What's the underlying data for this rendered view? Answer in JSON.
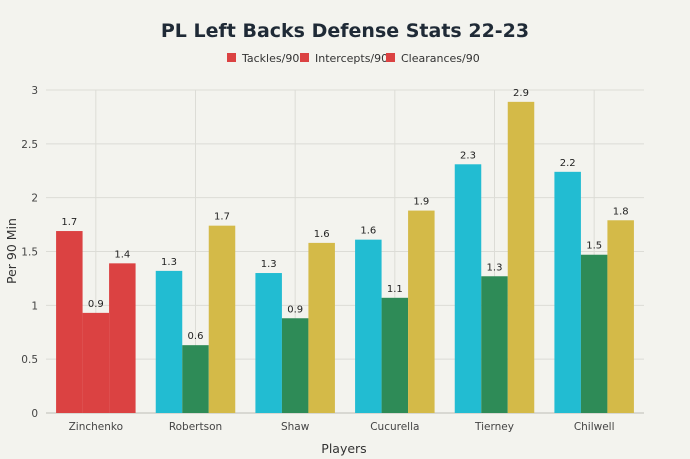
{
  "chart_data": {
    "type": "bar",
    "title": "PL Left Backs Defense Stats 22-23",
    "xlabel": "Players",
    "ylabel": "Per 90 Min",
    "ylim": [
      0,
      3
    ],
    "yticks": [
      "0",
      "0.5",
      "1",
      "1.5",
      "2",
      "2.5",
      "3"
    ],
    "grid": true,
    "legend_position": "top-center",
    "categories": [
      "Zinchenko",
      "Robertson",
      "Shaw",
      "Cucurella",
      "Tierney",
      "Chilwell"
    ],
    "series": [
      {
        "name": "Tackles/90",
        "values": [
          1.69,
          1.32,
          1.3,
          1.61,
          2.31,
          2.24
        ],
        "labels": [
          "1.7",
          "1.3",
          "1.3",
          "1.6",
          "2.3",
          "2.2"
        ],
        "color": "#22bcd2"
      },
      {
        "name": "Intercepts/90",
        "values": [
          0.93,
          0.63,
          0.88,
          1.07,
          1.27,
          1.47
        ],
        "labels": [
          "0.9",
          "0.6",
          "0.9",
          "1.1",
          "1.3",
          "1.5"
        ],
        "color": "#2e8b57"
      },
      {
        "name": "Clearances/90",
        "values": [
          1.39,
          1.74,
          1.58,
          1.88,
          2.89,
          1.79
        ],
        "labels": [
          "1.4",
          "1.7",
          "1.6",
          "1.9",
          "2.9",
          "1.8"
        ],
        "color": "#d4ba48"
      }
    ],
    "highlight": {
      "category": "Zinchenko",
      "color": "#db4242"
    }
  }
}
